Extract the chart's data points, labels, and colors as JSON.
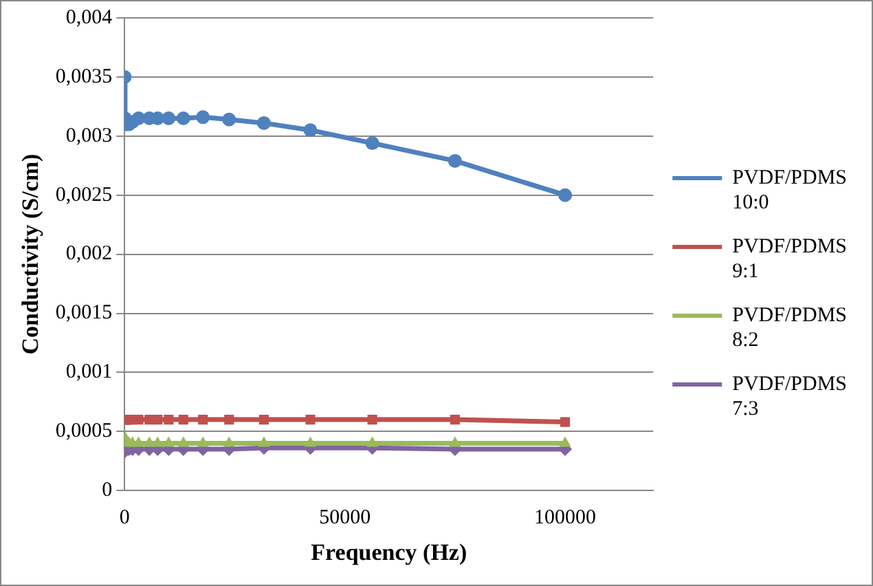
{
  "chart_data": {
    "type": "line",
    "xlabel": "Frequency (Hz)",
    "ylabel": "Conductivity (S/cm)",
    "x": [
      10,
      100,
      178,
      316,
      562,
      1000,
      1778,
      3162,
      5623,
      7499,
      10000,
      13335,
      17783,
      23714,
      31623,
      42170,
      56234,
      75000,
      100000
    ],
    "series": [
      {
        "name": "PVDF/PDMS 10:0",
        "color": "#4f81bd",
        "marker": "circle",
        "values": [
          0.0035,
          0.00315,
          0.00312,
          0.0031,
          0.0031,
          0.0031,
          0.00312,
          0.00315,
          0.00315,
          0.00315,
          0.00315,
          0.00315,
          0.00316,
          0.00314,
          0.00311,
          0.00305,
          0.00294,
          0.00279,
          0.0025
        ]
      },
      {
        "name": "PVDF/PDMS 9:1",
        "color": "#c0504d",
        "marker": "square",
        "values": [
          0.0006,
          0.0006,
          0.0006,
          0.0006,
          0.0006,
          0.0006,
          0.0006,
          0.0006,
          0.0006,
          0.0006,
          0.0006,
          0.0006,
          0.0006,
          0.0006,
          0.0006,
          0.0006,
          0.0006,
          0.0006,
          0.00058
        ]
      },
      {
        "name": "PVDF/PDMS 8:2",
        "color": "#9bbb59",
        "marker": "triangle",
        "values": [
          0.00045,
          0.00042,
          0.00042,
          0.00041,
          0.00041,
          0.0004,
          0.0004,
          0.0004,
          0.0004,
          0.0004,
          0.0004,
          0.0004,
          0.0004,
          0.0004,
          0.0004,
          0.0004,
          0.0004,
          0.0004,
          0.0004
        ]
      },
      {
        "name": "PVDF/PDMS 7:3",
        "color": "#8064a2",
        "marker": "diamond",
        "values": [
          0.00033,
          0.00034,
          0.00035,
          0.00035,
          0.00035,
          0.00035,
          0.00035,
          0.00035,
          0.00035,
          0.00035,
          0.00035,
          0.00035,
          0.00035,
          0.00035,
          0.00036,
          0.00036,
          0.00036,
          0.00035,
          0.00035
        ]
      }
    ],
    "xlim": [
      0,
      120000
    ],
    "xticks": [
      0,
      50000,
      100000
    ],
    "ylim": [
      0,
      0.004
    ],
    "yticks": [
      0,
      {
        "value": 0.0005,
        "label": "0,0005"
      },
      {
        "value": 0.001,
        "label": "0,001"
      },
      {
        "value": 0.0015,
        "label": "0,0015"
      },
      {
        "value": 0.002,
        "label": "0,002"
      },
      {
        "value": 0.0025,
        "label": "0,0025"
      },
      {
        "value": 0.003,
        "label": "0,003"
      },
      {
        "value": 0.0035,
        "label": "0,0035"
      },
      {
        "value": 0.004,
        "label": "0,004"
      }
    ],
    "grid": "y",
    "legend": "right"
  }
}
